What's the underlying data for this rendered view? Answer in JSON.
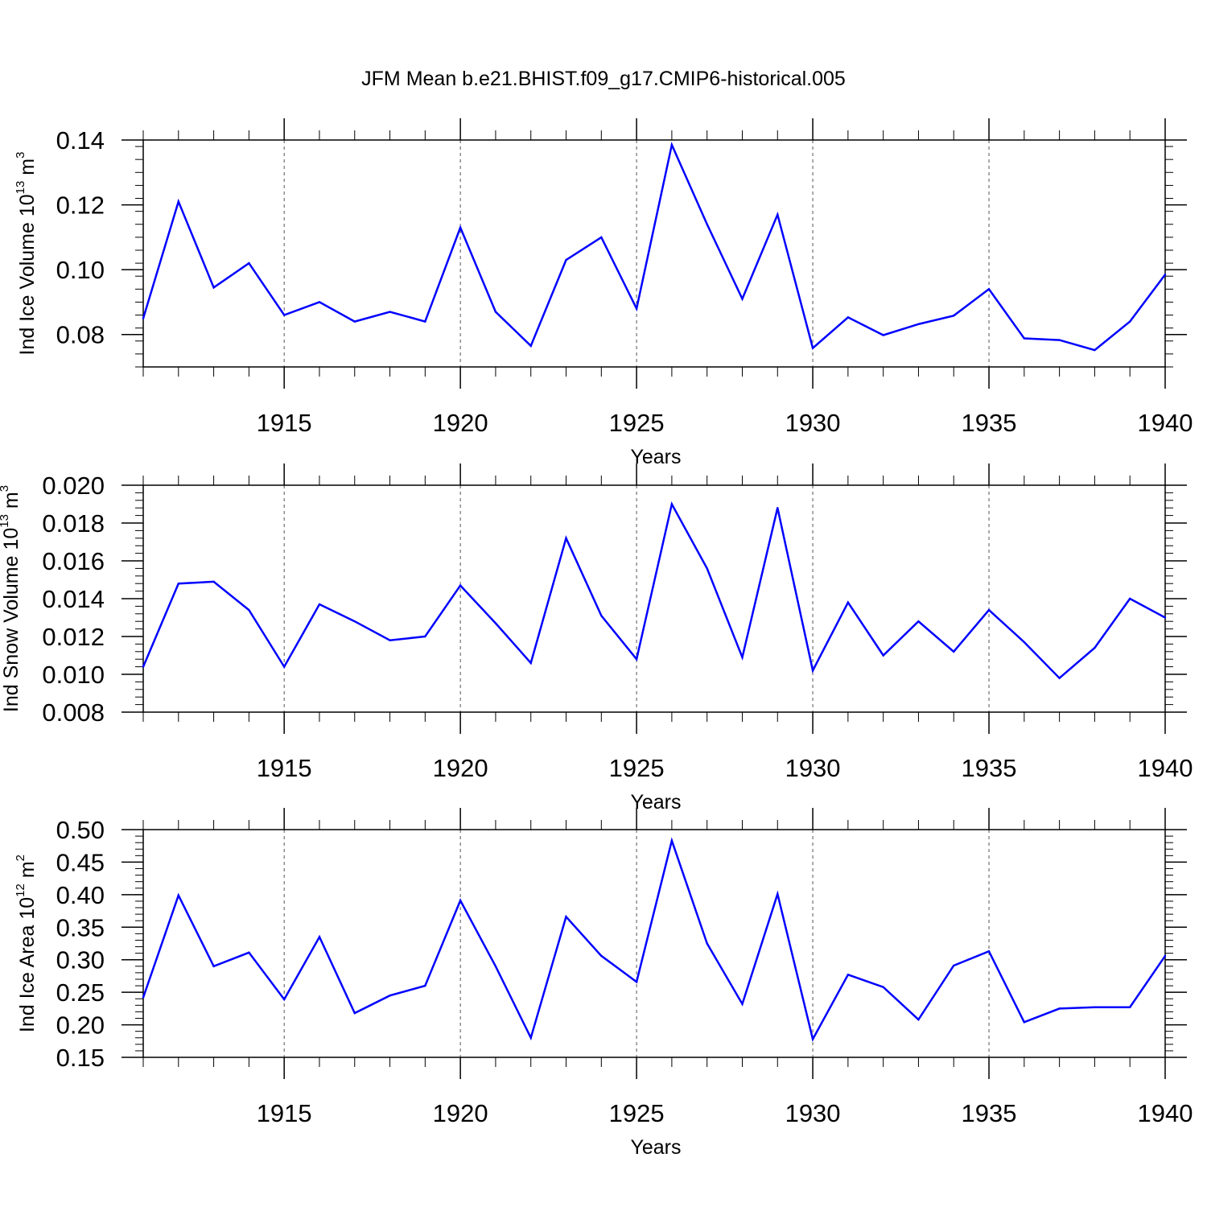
{
  "title": "JFM Mean b.e21.BHIST.f09_g17.CMIP6-historical.005",
  "colors": {
    "line": "#0000ff",
    "grid": "#555555",
    "axis": "#000000"
  },
  "chart_data": [
    {
      "type": "line",
      "xlabel": "Years",
      "ylabel": "Ind Ice Volume 10",
      "ylabel_exp": "13",
      "ylabel_unit": " m",
      "ylabel_unit_exp": "3",
      "xlim": [
        1911,
        1940
      ],
      "ylim": [
        0.07,
        0.14
      ],
      "yticks": [
        0.08,
        0.1,
        0.12,
        0.14
      ],
      "yticklabels": [
        "0.08",
        "0.10",
        "0.12",
        "0.14"
      ],
      "xticks": [
        1915,
        1920,
        1925,
        1930,
        1935,
        1940
      ],
      "xticklabels": [
        "1915",
        "1920",
        "1925",
        "1930",
        "1935",
        "1940"
      ],
      "grid_x": true,
      "x": [
        1911,
        1912,
        1913,
        1914,
        1915,
        1916,
        1917,
        1918,
        1919,
        1920,
        1921,
        1922,
        1923,
        1924,
        1925,
        1926,
        1927,
        1928,
        1929,
        1930,
        1931,
        1932,
        1933,
        1934,
        1935,
        1936,
        1937,
        1938,
        1939,
        1940
      ],
      "values": [
        0.085,
        0.121,
        0.0945,
        0.102,
        0.086,
        0.09,
        0.084,
        0.087,
        0.084,
        0.113,
        0.087,
        0.0765,
        0.103,
        0.11,
        0.088,
        0.1385,
        0.114,
        0.091,
        0.117,
        0.0758,
        0.0853,
        0.0798,
        0.0832,
        0.0858,
        0.094,
        0.0788,
        0.0783,
        0.0752,
        0.084,
        0.0985
      ]
    },
    {
      "type": "line",
      "xlabel": "Years",
      "ylabel": "Ind Snow Volume 10",
      "ylabel_exp": "13",
      "ylabel_unit": " m",
      "ylabel_unit_exp": "3",
      "xlim": [
        1911,
        1940
      ],
      "ylim": [
        0.008,
        0.02
      ],
      "yticks": [
        0.008,
        0.01,
        0.012,
        0.014,
        0.016,
        0.018,
        0.02
      ],
      "yticklabels": [
        "0.008",
        "0.010",
        "0.012",
        "0.014",
        "0.016",
        "0.018",
        "0.020"
      ],
      "xticks": [
        1915,
        1920,
        1925,
        1930,
        1935,
        1940
      ],
      "xticklabels": [
        "1915",
        "1920",
        "1925",
        "1930",
        "1935",
        "1940"
      ],
      "grid_x": true,
      "x": [
        1911,
        1912,
        1913,
        1914,
        1915,
        1916,
        1917,
        1918,
        1919,
        1920,
        1921,
        1922,
        1923,
        1924,
        1925,
        1926,
        1927,
        1928,
        1929,
        1930,
        1931,
        1932,
        1933,
        1934,
        1935,
        1936,
        1937,
        1938,
        1939,
        1940
      ],
      "values": [
        0.0104,
        0.0148,
        0.0149,
        0.0134,
        0.0104,
        0.0137,
        0.0128,
        0.0118,
        0.012,
        0.0147,
        0.0127,
        0.0106,
        0.0172,
        0.0131,
        0.0108,
        0.019,
        0.0156,
        0.0109,
        0.0188,
        0.0102,
        0.0138,
        0.011,
        0.0128,
        0.0112,
        0.0134,
        0.0117,
        0.0098,
        0.0114,
        0.014,
        0.013
      ]
    },
    {
      "type": "line",
      "xlabel": "Years",
      "ylabel": "Ind Ice Area 10",
      "ylabel_exp": "12",
      "ylabel_unit": " m",
      "ylabel_unit_exp": "2",
      "xlim": [
        1911,
        1940
      ],
      "ylim": [
        0.15,
        0.5
      ],
      "yticks": [
        0.15,
        0.2,
        0.25,
        0.3,
        0.35,
        0.4,
        0.45,
        0.5
      ],
      "yticklabels": [
        "0.15",
        "0.20",
        "0.25",
        "0.30",
        "0.35",
        "0.40",
        "0.45",
        "0.50"
      ],
      "xticks": [
        1915,
        1920,
        1925,
        1930,
        1935,
        1940
      ],
      "xticklabels": [
        "1915",
        "1920",
        "1925",
        "1930",
        "1935",
        "1940"
      ],
      "grid_x": true,
      "x": [
        1911,
        1912,
        1913,
        1914,
        1915,
        1916,
        1917,
        1918,
        1919,
        1920,
        1921,
        1922,
        1923,
        1924,
        1925,
        1926,
        1927,
        1928,
        1929,
        1930,
        1931,
        1932,
        1933,
        1934,
        1935,
        1936,
        1937,
        1938,
        1939,
        1940
      ],
      "values": [
        0.242,
        0.399,
        0.29,
        0.311,
        0.239,
        0.335,
        0.218,
        0.245,
        0.26,
        0.391,
        0.29,
        0.18,
        0.366,
        0.306,
        0.266,
        0.483,
        0.325,
        0.232,
        0.401,
        0.178,
        0.277,
        0.258,
        0.208,
        0.291,
        0.313,
        0.204,
        0.225,
        0.227,
        0.227,
        0.306
      ]
    }
  ]
}
